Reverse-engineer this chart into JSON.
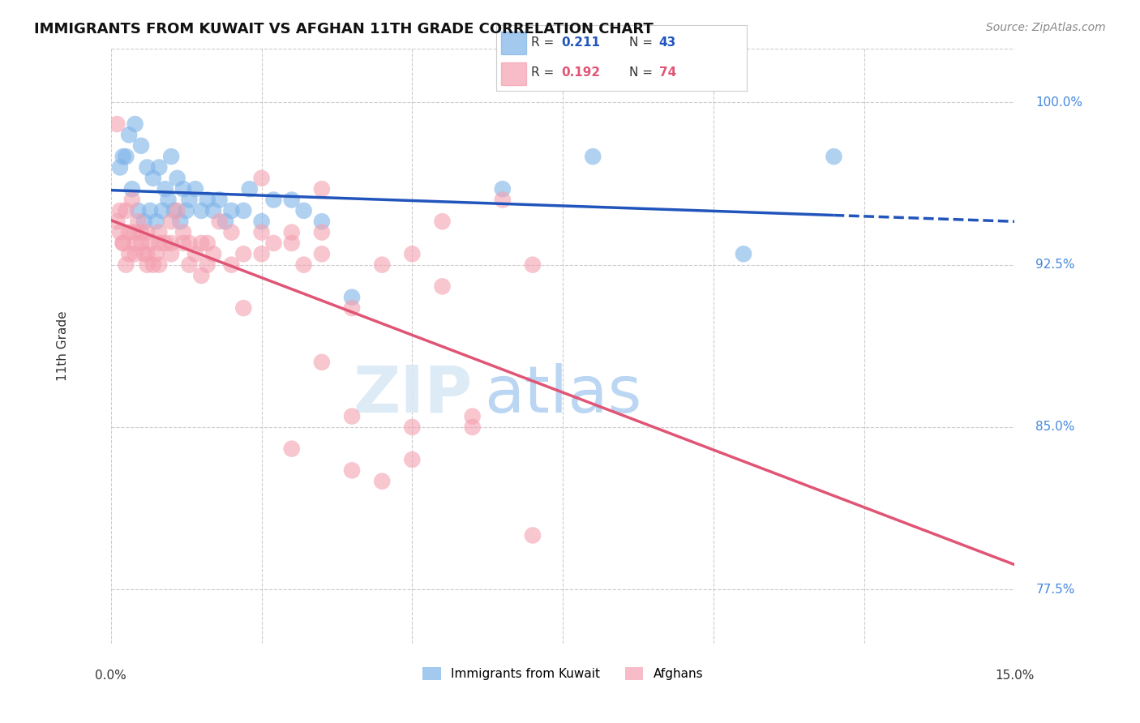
{
  "title": "IMMIGRANTS FROM KUWAIT VS AFGHAN 11TH GRADE CORRELATION CHART",
  "source": "Source: ZipAtlas.com",
  "ylabel": "11th Grade",
  "yticks": [
    77.5,
    85.0,
    92.5,
    100.0
  ],
  "xlim": [
    0.0,
    15.0
  ],
  "ylim": [
    75.0,
    102.5
  ],
  "color_kuwait": "#7EB3E8",
  "color_afghan": "#F4A0B0",
  "line_color_kuwait": "#2255BB",
  "line_color_afghan": "#E05575",
  "kuwait_x": [
    0.2,
    0.3,
    0.4,
    0.5,
    0.6,
    0.7,
    0.8,
    0.9,
    1.0,
    1.1,
    1.2,
    1.3,
    1.4,
    1.5,
    1.6,
    1.7,
    1.8,
    1.9,
    2.0,
    2.2,
    2.3,
    2.5,
    2.7,
    3.0,
    3.2,
    3.5,
    4.0,
    0.15,
    0.25,
    0.35,
    0.45,
    0.55,
    0.65,
    0.75,
    0.85,
    0.95,
    1.05,
    1.15,
    1.25,
    6.5,
    8.0,
    10.5,
    12.0
  ],
  "kuwait_y": [
    97.5,
    98.5,
    99.0,
    98.0,
    97.0,
    96.5,
    97.0,
    96.0,
    97.5,
    96.5,
    96.0,
    95.5,
    96.0,
    95.0,
    95.5,
    95.0,
    95.5,
    94.5,
    95.0,
    95.0,
    96.0,
    94.5,
    95.5,
    95.5,
    95.0,
    94.5,
    91.0,
    97.0,
    97.5,
    96.0,
    95.0,
    94.5,
    95.0,
    94.5,
    95.0,
    95.5,
    95.0,
    94.5,
    95.0,
    96.0,
    97.5,
    93.0,
    97.5
  ],
  "afghan_x": [
    0.1,
    0.15,
    0.2,
    0.25,
    0.3,
    0.35,
    0.4,
    0.45,
    0.5,
    0.55,
    0.6,
    0.65,
    0.7,
    0.75,
    0.8,
    0.9,
    1.0,
    1.1,
    1.2,
    1.3,
    1.4,
    1.5,
    1.6,
    1.7,
    1.8,
    2.0,
    2.2,
    2.5,
    2.7,
    3.0,
    3.2,
    3.5,
    4.0,
    4.5,
    5.0,
    5.5,
    0.1,
    0.2,
    0.3,
    0.4,
    0.5,
    0.6,
    0.8,
    1.0,
    1.2,
    1.5,
    2.0,
    2.5,
    3.0,
    4.0,
    5.0,
    6.0,
    0.15,
    0.25,
    0.4,
    0.6,
    0.8,
    1.0,
    1.3,
    1.6,
    2.2,
    3.5,
    5.0,
    7.0,
    3.5,
    6.5,
    3.5,
    4.5,
    5.5,
    6.0,
    2.5,
    3.0,
    4.0,
    7.0
  ],
  "afghan_y": [
    99.0,
    95.0,
    93.5,
    95.0,
    93.0,
    95.5,
    94.0,
    94.5,
    93.5,
    93.0,
    94.0,
    93.5,
    92.5,
    93.0,
    94.0,
    93.5,
    93.0,
    95.0,
    94.0,
    93.5,
    93.0,
    93.5,
    92.5,
    93.0,
    94.5,
    94.0,
    93.0,
    94.0,
    93.5,
    93.5,
    92.5,
    93.0,
    90.5,
    92.5,
    93.0,
    94.5,
    94.5,
    93.5,
    94.0,
    93.5,
    94.0,
    92.5,
    93.5,
    93.5,
    93.5,
    92.0,
    92.5,
    93.0,
    94.0,
    85.5,
    83.5,
    85.0,
    94.0,
    92.5,
    93.0,
    93.0,
    92.5,
    94.5,
    92.5,
    93.5,
    90.5,
    94.0,
    85.0,
    92.5,
    96.0,
    95.5,
    88.0,
    82.5,
    91.5,
    85.5,
    96.5,
    84.0,
    83.0,
    80.0
  ]
}
